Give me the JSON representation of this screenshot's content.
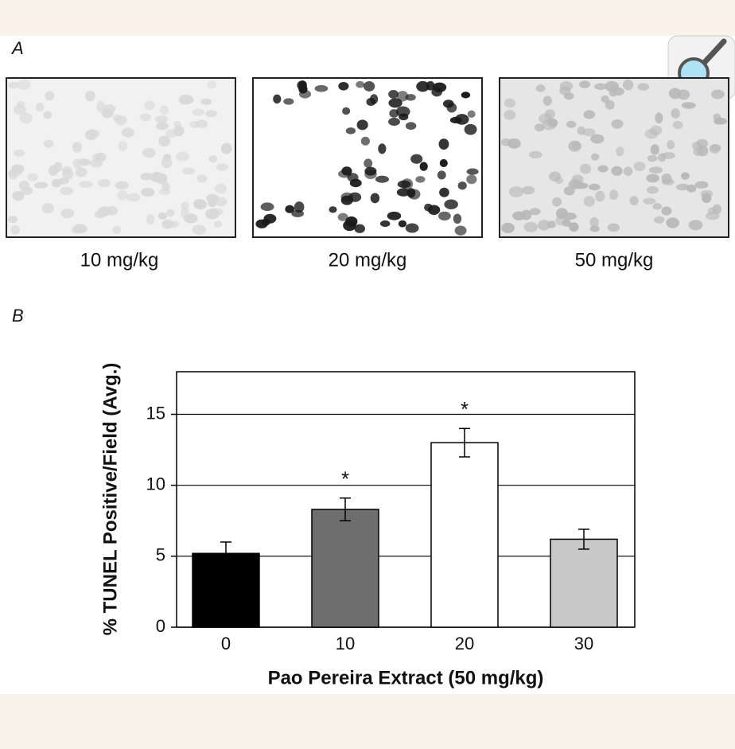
{
  "panel_a": {
    "label": "A",
    "captions": [
      "10 mg/kg",
      "20 mg/kg",
      "50 mg/kg"
    ]
  },
  "chart_data": {
    "type": "bar",
    "panel_label": "B",
    "xlabel": "Pao Pereira Extract (50 mg/kg)",
    "ylabel": "% TUNEL Positive/Field (Avg.)",
    "categories": [
      "0",
      "10",
      "20",
      "30"
    ],
    "values": [
      5.2,
      8.3,
      13.0,
      6.2
    ],
    "errors": [
      0.8,
      0.8,
      1.0,
      0.7
    ],
    "colors": [
      "#000000",
      "#6e6e6e",
      "#ffffff",
      "#c8c8c8"
    ],
    "significance": [
      false,
      true,
      true,
      false
    ],
    "significance_marker": "*",
    "ylim": [
      0,
      18
    ],
    "yticks": [
      0,
      5,
      10,
      15
    ],
    "grid": true
  }
}
